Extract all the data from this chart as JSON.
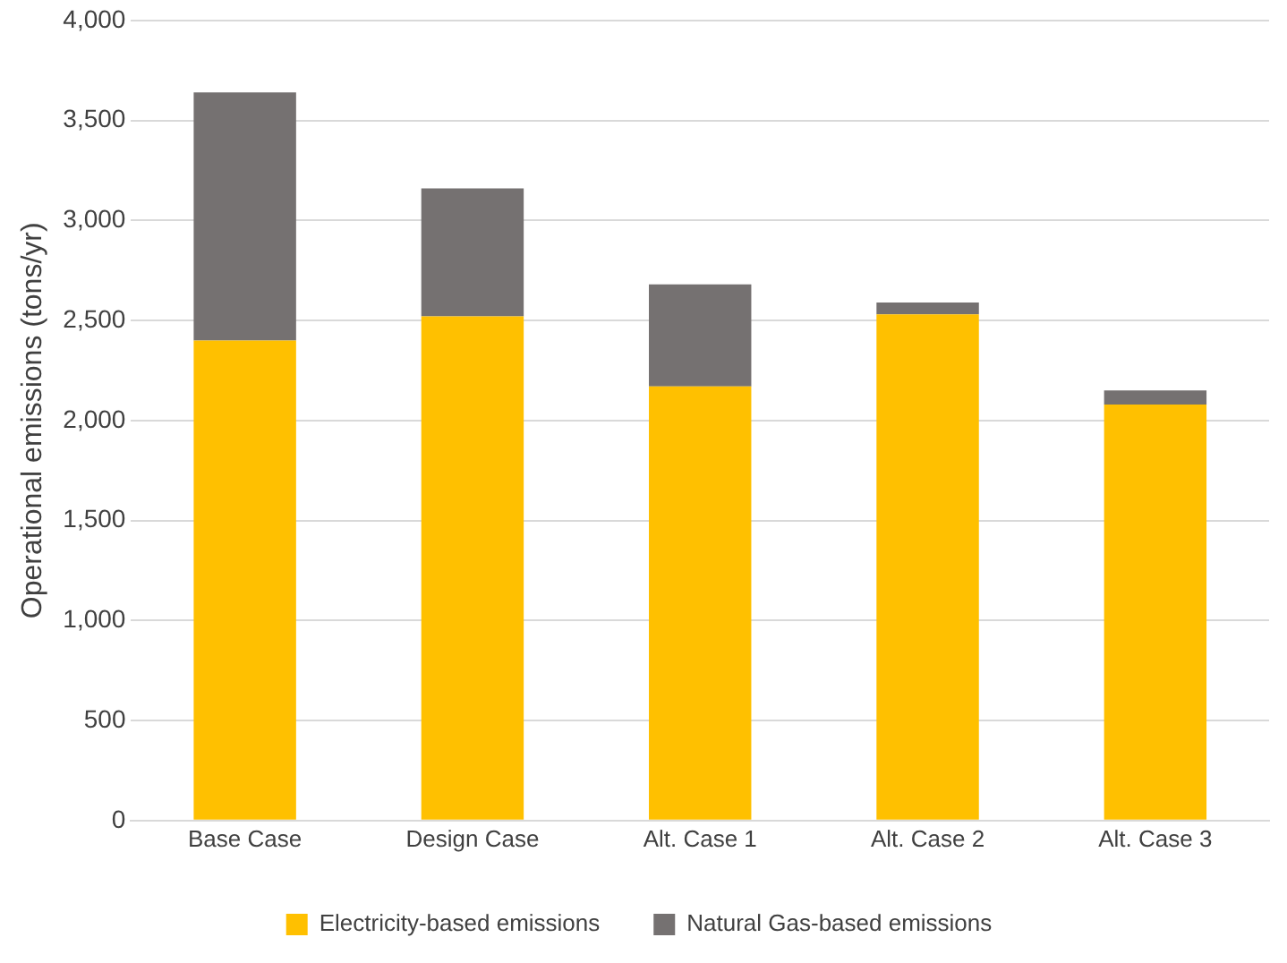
{
  "chart_data": {
    "type": "bar",
    "stacked": true,
    "ylabel": "Operational emissions (tons/yr)",
    "categories": [
      "Base Case",
      "Design Case",
      "Alt. Case 1",
      "Alt. Case 2",
      "Alt. Case 3"
    ],
    "series": [
      {
        "name": "Electricity-based emissions",
        "color": "#ffc000",
        "values": [
          2400,
          2520,
          2170,
          2530,
          2080
        ]
      },
      {
        "name": "Natural Gas-based emissions",
        "color": "#757171",
        "values": [
          1240,
          640,
          510,
          60,
          70
        ]
      }
    ],
    "ylim": [
      0,
      4000
    ],
    "yticks": [
      0,
      500,
      {
        "value": 1000,
        "label": "1,000"
      },
      {
        "value": 1500,
        "label": "1,500"
      },
      {
        "value": 2000,
        "label": "2,000"
      },
      {
        "value": 2500,
        "label": "2,500"
      },
      {
        "value": 3000,
        "label": "3,000"
      },
      {
        "value": 3500,
        "label": "3,500"
      },
      {
        "value": 4000,
        "label": "4,000"
      }
    ],
    "grid": "y",
    "legend": "bottom"
  }
}
